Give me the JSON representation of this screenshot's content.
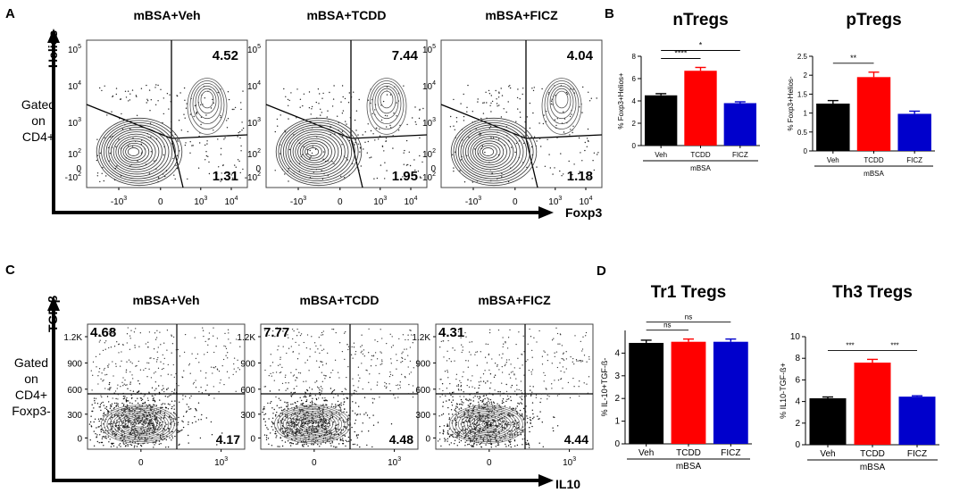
{
  "panels": {
    "A": {
      "letter": "A",
      "y_marker": "Helios",
      "x_marker": "Foxp3",
      "gate_label": [
        "Gated",
        "on",
        "CD4+"
      ],
      "x_ticks": [
        "-10",
        "0",
        "10",
        "10"
      ],
      "x_tick_sup": [
        "3",
        "",
        "3",
        "4"
      ],
      "y_ticks": [
        "10",
        "10",
        "10",
        "10",
        "0",
        "-10"
      ],
      "y_tick_sup": [
        "5",
        "4",
        "3",
        "2",
        "",
        "2"
      ],
      "plots": [
        {
          "title": "mBSA+Veh",
          "upper_right": "4.52",
          "lower_right": "1.31"
        },
        {
          "title": "mBSA+TCDD",
          "upper_right": "7.44",
          "lower_right": "1.95"
        },
        {
          "title": "mBSA+FICZ",
          "upper_right": "4.04",
          "lower_right": "1.18"
        }
      ]
    },
    "C": {
      "letter": "C",
      "y_marker": "TGF-β",
      "x_marker": "IL10",
      "gate_label": [
        "Gated",
        "on",
        "CD4+",
        "Foxp3-"
      ],
      "x_ticks": [
        "0",
        "10"
      ],
      "x_tick_sup": [
        "",
        "3"
      ],
      "y_ticks": [
        "1.2K",
        "900",
        "600",
        "300",
        "0"
      ],
      "plots": [
        {
          "title": "mBSA+Veh",
          "upper_left": "4.68",
          "lower_right": "4.17"
        },
        {
          "title": "mBSA+TCDD",
          "upper_left": "7.77",
          "lower_right": "4.48"
        },
        {
          "title": "mBSA+FICZ",
          "upper_left": "4.31",
          "lower_right": "4.44"
        }
      ]
    },
    "B": {
      "letter": "B"
    },
    "D": {
      "letter": "D"
    }
  },
  "chart_data": [
    {
      "type": "bar",
      "title": "nTregs",
      "ylabel": "% Foxp3+Helios+",
      "categories": [
        "Veh",
        "TCDD",
        "FICZ"
      ],
      "values": [
        4.5,
        6.7,
        3.8
      ],
      "errors": [
        0.15,
        0.3,
        0.12
      ],
      "colors": [
        "#000000",
        "#ff0000",
        "#0000cc"
      ],
      "ylim": [
        0,
        8
      ],
      "yticks": [
        0,
        2,
        4,
        6,
        8
      ],
      "group_label": "mBSA",
      "significance": [
        {
          "from": 0,
          "to": 1,
          "label": "****"
        },
        {
          "from": 0,
          "to": 2,
          "label": "*"
        }
      ]
    },
    {
      "type": "bar",
      "title": "pTregs",
      "ylabel": "% Foxp3+Helios-",
      "categories": [
        "Veh",
        "TCDD",
        "FICZ"
      ],
      "values": [
        1.25,
        1.95,
        0.98
      ],
      "errors": [
        0.08,
        0.13,
        0.07
      ],
      "colors": [
        "#000000",
        "#ff0000",
        "#0000cc"
      ],
      "ylim": [
        0,
        2.5
      ],
      "yticks": [
        0.0,
        0.5,
        1.0,
        1.5,
        2.0,
        2.5
      ],
      "group_label": "mBSA",
      "significance": [
        {
          "from": 0,
          "to": 1,
          "label": "**"
        }
      ]
    },
    {
      "type": "bar",
      "title": "Tr1 Tregs",
      "ylabel": "% IL-10+TGF-ß-",
      "categories": [
        "Veh",
        "TCDD",
        "FICZ"
      ],
      "values": [
        4.45,
        4.5,
        4.5
      ],
      "errors": [
        0.12,
        0.12,
        0.12
      ],
      "colors": [
        "#000000",
        "#ff0000",
        "#0000cc"
      ],
      "ylim": [
        0,
        5
      ],
      "yticks": [
        0,
        1,
        2,
        3,
        4
      ],
      "group_label": "mBSA",
      "significance": [
        {
          "from": 0,
          "to": 1,
          "label": "ns"
        },
        {
          "from": 0,
          "to": 2,
          "label": "ns"
        }
      ]
    },
    {
      "type": "bar",
      "title": "Th3 Tregs",
      "ylabel": "% IL10-TGF-ß+",
      "categories": [
        "Veh",
        "TCDD",
        "FICZ"
      ],
      "values": [
        4.3,
        7.6,
        4.45
      ],
      "errors": [
        0.12,
        0.3,
        0.08
      ],
      "colors": [
        "#000000",
        "#ff0000",
        "#0000cc"
      ],
      "ylim": [
        0,
        10
      ],
      "yticks": [
        0,
        2,
        4,
        6,
        8,
        10
      ],
      "group_label": "mBSA",
      "significance": [
        {
          "from": 0,
          "to": 1,
          "label": "***"
        },
        {
          "from": 1,
          "to": 2,
          "label": "***"
        }
      ]
    }
  ]
}
